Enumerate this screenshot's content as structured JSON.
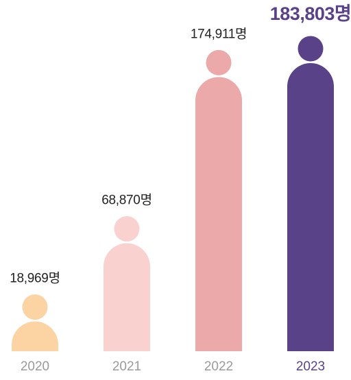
{
  "chart_data": {
    "type": "bar",
    "categories": [
      "2020",
      "2021",
      "2022",
      "2023"
    ],
    "values": [
      18969,
      68870,
      174911,
      183803
    ],
    "value_labels": [
      "18,969명",
      "68,870명",
      "174,911명",
      "183,803명"
    ],
    "colors": [
      "#fcd3a3",
      "#f9d2cf",
      "#eba9aa",
      "#5a4288"
    ]
  }
}
